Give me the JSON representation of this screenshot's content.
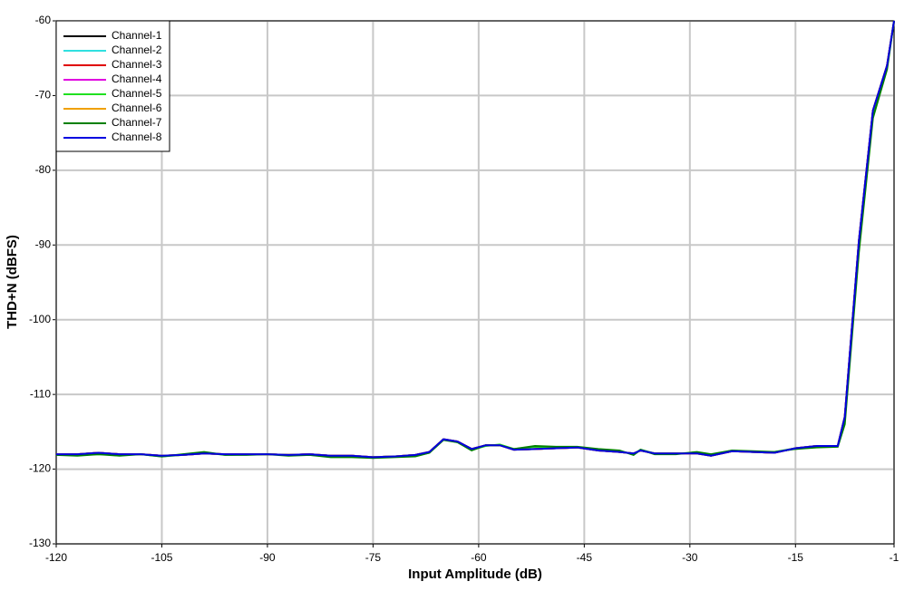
{
  "chart_data": {
    "type": "line",
    "xlabel": "Input Amplitude (dB)",
    "ylabel": "THD+N (dBFS)",
    "x": [
      -120,
      -117,
      -114,
      -111,
      -108,
      -105,
      -102,
      -99,
      -96,
      -93,
      -90,
      -87,
      -84,
      -81,
      -78,
      -75,
      -72,
      -69,
      -67,
      -65,
      -63,
      -61,
      -59,
      -57,
      -55,
      -52,
      -49,
      -46,
      -43,
      -40,
      -38,
      -37,
      -35,
      -32,
      -29,
      -27,
      -24,
      -21,
      -18,
      -15,
      -12,
      -9,
      -8,
      -6,
      -4,
      -2,
      -1
    ],
    "series": [
      {
        "name": "Channel-1",
        "color": "#000000",
        "values": [
          -118.0,
          -118.0,
          -117.8,
          -118.0,
          -118.0,
          -118.2,
          -118.1,
          -117.9,
          -118.0,
          -118.0,
          -118.0,
          -118.1,
          -118.0,
          -118.2,
          -118.2,
          -118.4,
          -118.3,
          -118.1,
          -117.7,
          -116.0,
          -116.3,
          -117.3,
          -116.8,
          -116.8,
          -117.4,
          -117.3,
          -117.2,
          -117.1,
          -117.5,
          -117.7,
          -117.9,
          -117.5,
          -117.9,
          -117.9,
          -117.9,
          -118.2,
          -117.6,
          -117.7,
          -117.8,
          -117.2,
          -116.9,
          -116.9,
          -113.0,
          -89.5,
          -72.0,
          -66.0,
          -60.0
        ]
      },
      {
        "name": "Channel-2",
        "color": "#30e0e0",
        "values": [
          -118.0,
          -118.0,
          -117.8,
          -118.0,
          -118.0,
          -118.2,
          -118.1,
          -117.9,
          -118.0,
          -118.0,
          -118.0,
          -118.1,
          -118.0,
          -118.2,
          -118.2,
          -118.4,
          -118.3,
          -118.1,
          -117.7,
          -116.0,
          -116.3,
          -117.3,
          -116.8,
          -116.8,
          -117.4,
          -117.3,
          -117.2,
          -117.1,
          -117.5,
          -117.7,
          -117.9,
          -117.5,
          -117.9,
          -117.9,
          -117.9,
          -118.2,
          -117.6,
          -117.7,
          -117.8,
          -117.2,
          -116.9,
          -116.9,
          -113.0,
          -89.5,
          -72.0,
          -66.0,
          -60.0
        ]
      },
      {
        "name": "Channel-3",
        "color": "#e00000",
        "values": [
          -118.0,
          -118.0,
          -117.8,
          -118.0,
          -118.0,
          -118.2,
          -118.1,
          -117.9,
          -118.0,
          -118.0,
          -118.0,
          -118.1,
          -118.0,
          -118.2,
          -118.2,
          -118.4,
          -118.3,
          -118.1,
          -117.7,
          -116.0,
          -116.3,
          -117.3,
          -116.8,
          -116.8,
          -117.4,
          -117.3,
          -117.2,
          -117.1,
          -117.5,
          -117.7,
          -117.9,
          -117.5,
          -117.9,
          -117.9,
          -117.9,
          -118.2,
          -117.6,
          -117.7,
          -117.8,
          -117.2,
          -116.9,
          -116.9,
          -113.0,
          -89.5,
          -72.0,
          -66.0,
          -60.0
        ]
      },
      {
        "name": "Channel-4",
        "color": "#e000e0",
        "values": [
          -118.0,
          -118.0,
          -117.8,
          -118.0,
          -118.0,
          -118.2,
          -118.1,
          -117.9,
          -118.0,
          -118.0,
          -118.0,
          -118.1,
          -118.0,
          -118.2,
          -118.2,
          -118.4,
          -118.3,
          -118.1,
          -117.7,
          -116.0,
          -116.3,
          -117.3,
          -116.8,
          -116.8,
          -117.4,
          -117.3,
          -117.2,
          -117.1,
          -117.5,
          -117.7,
          -117.9,
          -117.5,
          -117.9,
          -117.9,
          -117.9,
          -118.2,
          -117.6,
          -117.7,
          -117.8,
          -117.2,
          -116.9,
          -116.9,
          -113.0,
          -89.5,
          -72.0,
          -66.0,
          -60.0
        ]
      },
      {
        "name": "Channel-5",
        "color": "#20e020",
        "values": [
          -118.1,
          -118.1,
          -118.0,
          -118.1,
          -118.0,
          -118.3,
          -118.1,
          -117.8,
          -118.1,
          -118.0,
          -118.0,
          -118.1,
          -118.1,
          -118.3,
          -118.3,
          -118.4,
          -118.3,
          -118.2,
          -117.8,
          -116.0,
          -116.4,
          -117.4,
          -116.9,
          -116.7,
          -117.3,
          -117.0,
          -117.1,
          -117.1,
          -117.4,
          -117.6,
          -118.0,
          -117.4,
          -117.9,
          -117.9,
          -117.8,
          -118.1,
          -117.5,
          -117.7,
          -117.7,
          -117.2,
          -117.0,
          -116.9,
          -113.5,
          -90.0,
          -72.5,
          -66.2,
          -60.0
        ]
      },
      {
        "name": "Channel-6",
        "color": "#f0a000",
        "values": [
          -118.0,
          -118.0,
          -117.8,
          -118.0,
          -118.0,
          -118.2,
          -118.1,
          -117.9,
          -118.0,
          -118.0,
          -118.0,
          -118.1,
          -118.0,
          -118.2,
          -118.2,
          -118.4,
          -118.3,
          -118.1,
          -117.7,
          -116.0,
          -116.3,
          -117.3,
          -116.8,
          -116.8,
          -117.4,
          -117.3,
          -117.2,
          -117.1,
          -117.5,
          -117.7,
          -117.9,
          -117.5,
          -117.9,
          -117.9,
          -117.9,
          -118.2,
          -117.6,
          -117.7,
          -117.8,
          -117.2,
          -116.9,
          -116.9,
          -113.0,
          -89.5,
          -72.0,
          -66.0,
          -60.0
        ]
      },
      {
        "name": "Channel-7",
        "color": "#008000",
        "values": [
          -118.1,
          -118.2,
          -118.0,
          -118.2,
          -118.0,
          -118.3,
          -118.0,
          -117.7,
          -118.1,
          -118.1,
          -118.0,
          -118.2,
          -118.1,
          -118.4,
          -118.4,
          -118.5,
          -118.4,
          -118.3,
          -117.8,
          -116.1,
          -116.4,
          -117.5,
          -116.8,
          -116.8,
          -117.3,
          -116.9,
          -117.0,
          -117.0,
          -117.3,
          -117.5,
          -118.1,
          -117.4,
          -118.0,
          -118.0,
          -117.7,
          -118.0,
          -117.5,
          -117.6,
          -117.7,
          -117.3,
          -117.1,
          -117.0,
          -114.0,
          -91.0,
          -73.0,
          -66.5,
          -60.0
        ]
      },
      {
        "name": "Channel-8",
        "color": "#0000e0",
        "values": [
          -118.0,
          -118.0,
          -117.8,
          -118.0,
          -118.0,
          -118.2,
          -118.1,
          -117.9,
          -118.0,
          -118.0,
          -118.0,
          -118.1,
          -118.0,
          -118.2,
          -118.2,
          -118.4,
          -118.3,
          -118.1,
          -117.7,
          -116.0,
          -116.3,
          -117.3,
          -116.8,
          -116.8,
          -117.4,
          -117.3,
          -117.2,
          -117.1,
          -117.5,
          -117.7,
          -117.9,
          -117.5,
          -117.9,
          -117.9,
          -117.9,
          -118.2,
          -117.6,
          -117.7,
          -117.8,
          -117.2,
          -116.9,
          -116.9,
          -113.0,
          -89.5,
          -72.0,
          -66.0,
          -60.0
        ]
      }
    ],
    "xlim": [
      -120,
      -1
    ],
    "xticks": [
      -120,
      -105,
      -90,
      -75,
      -60,
      -45,
      -30,
      -15,
      -1
    ],
    "ylim": [
      -130,
      -60
    ],
    "yticks": [
      -130,
      -120,
      -110,
      -100,
      -90,
      -80,
      -70,
      -60
    ],
    "grid": true,
    "legend": "upper left"
  }
}
